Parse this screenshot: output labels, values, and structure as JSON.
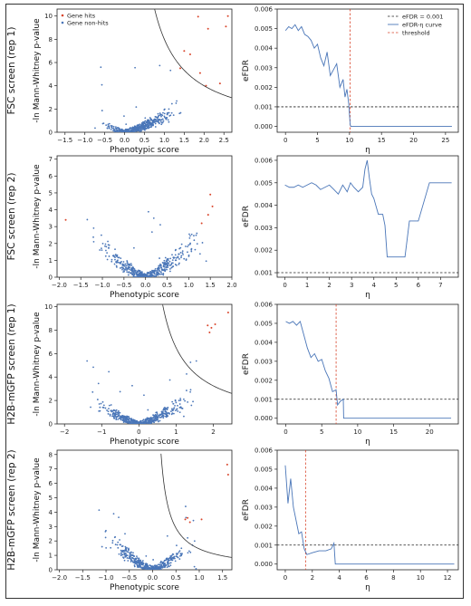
{
  "chart_data": [
    {
      "panel": "A1",
      "type": "scatter",
      "row_label": "FSC screen (rep 1)",
      "xlabel": "Phenotypic score",
      "ylabel": "-ln Mann-Whitney p-value",
      "xlim": [
        -1.7,
        2.7
      ],
      "ylim": [
        0,
        10.6
      ],
      "xticks": [
        -1.5,
        -1.0,
        -0.5,
        0.0,
        0.5,
        1.0,
        1.5,
        2.0,
        2.5
      ],
      "xtick_labels": [
        "−1.5",
        "−1.0",
        "−0.5",
        "0.0",
        "0.5",
        "1.0",
        "1.5",
        "2.0",
        "2.5"
      ],
      "yticks": [
        0,
        2,
        4,
        6,
        8,
        10
      ],
      "ytick_labels": [
        "0",
        "2",
        "4",
        "6",
        "8",
        "10"
      ],
      "legend": [
        "Gene hits",
        "Gene non-hits"
      ],
      "legend_position": "top-left",
      "curve": {
        "c": 8.0,
        "xmin": 0.75
      },
      "spread": {
        "xmin": -0.75,
        "xmax": 1.5,
        "ymax": 2.8
      },
      "hits": [
        [
          2.6,
          10.0
        ],
        [
          2.55,
          9.1
        ],
        [
          1.85,
          9.95
        ],
        [
          2.1,
          8.9
        ],
        [
          1.5,
          7.0
        ],
        [
          2.4,
          4.2
        ],
        [
          2.05,
          4.0
        ],
        [
          1.4,
          5.5
        ],
        [
          1.65,
          6.7
        ],
        [
          1.9,
          5.1
        ]
      ],
      "nonhit_count": 420
    },
    {
      "panel": "B1",
      "type": "line",
      "xlabel": "η",
      "ylabel": "eFDR",
      "xlim": [
        -1.3,
        27
      ],
      "ylim": [
        -0.0003,
        0.006
      ],
      "xticks": [
        0,
        5,
        10,
        15,
        20,
        25
      ],
      "xtick_labels": [
        "0",
        "5",
        "10",
        "15",
        "20",
        "25"
      ],
      "yticks": [
        0.0,
        0.001,
        0.002,
        0.003,
        0.004,
        0.005,
        0.006
      ],
      "ytick_labels": [
        "0.000",
        "0.001",
        "0.002",
        "0.003",
        "0.004",
        "0.005",
        "0.006"
      ],
      "legend": [
        "eFDR = 0.001",
        "eFDR-η curve",
        "threshold"
      ],
      "legend_position": "top-right",
      "hline": 0.001,
      "threshold": 10.1,
      "x": [
        0,
        0.5,
        1,
        1.5,
        2,
        2.5,
        3,
        3.5,
        4,
        4.5,
        5,
        5.5,
        6,
        6.5,
        7,
        7.5,
        8,
        8.5,
        9,
        9.3,
        9.6,
        9.9,
        10.1,
        10.2,
        12,
        15,
        20,
        26
      ],
      "y": [
        0.0049,
        0.0051,
        0.005,
        0.0052,
        0.0049,
        0.0051,
        0.0047,
        0.0046,
        0.0044,
        0.004,
        0.0042,
        0.0035,
        0.0031,
        0.0038,
        0.0026,
        0.0029,
        0.0032,
        0.002,
        0.0024,
        0.0015,
        0.0019,
        0.0011,
        0.0001,
        0.0,
        0.0,
        0.0,
        0.0,
        0.0
      ]
    },
    {
      "panel": "A2",
      "type": "scatter",
      "row_label": "FSC screen (rep 2)",
      "xlabel": "Phenotypic score",
      "ylabel": "-ln Mann-Whitney p-value",
      "xlim": [
        -2.05,
        2.0
      ],
      "ylim": [
        0,
        7.2
      ],
      "xticks": [
        -2.0,
        -1.5,
        -1.0,
        -0.5,
        0.0,
        0.5,
        1.0,
        1.5,
        2.0
      ],
      "xtick_labels": [
        "−2.0",
        "−1.5",
        "−1.0",
        "−0.5",
        "0.0",
        "0.5",
        "1.0",
        "1.5",
        "2.0"
      ],
      "yticks": [
        0,
        1,
        2,
        3,
        4,
        5,
        6,
        7
      ],
      "ytick_labels": [
        "0",
        "1",
        "2",
        "3",
        "4",
        "5",
        "6",
        "7"
      ],
      "spread": {
        "xmin": -1.45,
        "xmax": 1.55,
        "ymax": 3.6
      },
      "hits": [
        [
          1.5,
          4.9
        ],
        [
          1.55,
          4.2
        ],
        [
          -1.85,
          3.4
        ],
        [
          1.45,
          3.7
        ],
        [
          1.3,
          3.2
        ]
      ],
      "nonhit_count": 450
    },
    {
      "panel": "B2",
      "type": "line",
      "xlabel": "η",
      "ylabel": "eFDR",
      "xlim": [
        -0.35,
        7.8
      ],
      "ylim": [
        0.0008,
        0.0062
      ],
      "xticks": [
        0,
        1,
        2,
        3,
        4,
        5,
        6,
        7
      ],
      "xtick_labels": [
        "0",
        "1",
        "2",
        "3",
        "4",
        "5",
        "6",
        "7"
      ],
      "yticks": [
        0.001,
        0.002,
        0.003,
        0.004,
        0.005,
        0.006
      ],
      "ytick_labels": [
        "0.001",
        "0.002",
        "0.003",
        "0.004",
        "0.005",
        "0.006"
      ],
      "hline": 0.001,
      "x": [
        0,
        0.2,
        0.4,
        0.6,
        0.8,
        1.0,
        1.2,
        1.4,
        1.6,
        1.8,
        2.0,
        2.2,
        2.4,
        2.6,
        2.8,
        2.95,
        3.1,
        3.3,
        3.5,
        3.6,
        3.7,
        3.8,
        3.9,
        4.0,
        4.2,
        4.4,
        4.5,
        4.6,
        4.9,
        5.2,
        5.4,
        5.6,
        5.8,
        6.0,
        6.5,
        7.5
      ],
      "y": [
        0.0049,
        0.0048,
        0.0048,
        0.0049,
        0.0048,
        0.0049,
        0.005,
        0.0049,
        0.0047,
        0.0048,
        0.0049,
        0.0047,
        0.0045,
        0.0049,
        0.0046,
        0.005,
        0.0048,
        0.0046,
        0.0048,
        0.0056,
        0.006,
        0.0052,
        0.0045,
        0.0043,
        0.0036,
        0.0036,
        0.0031,
        0.0017,
        0.0017,
        0.0017,
        0.0017,
        0.0033,
        0.0033,
        0.0033,
        0.005,
        0.005
      ]
    },
    {
      "panel": "A3",
      "type": "scatter",
      "row_label": "H2B-mGFP screen (rep 1)",
      "xlabel": "Phenotypic score",
      "ylabel": "-ln Mann-Whitney p-value",
      "xlim": [
        -2.2,
        2.5
      ],
      "ylim": [
        0,
        10.2
      ],
      "xticks": [
        -2,
        -1,
        0,
        1,
        2
      ],
      "xtick_labels": [
        "−2",
        "−1",
        "0",
        "1",
        "2"
      ],
      "yticks": [
        0,
        2,
        4,
        6,
        8,
        10
      ],
      "ytick_labels": [
        "0",
        "2",
        "4",
        "6",
        "8",
        "10"
      ],
      "curve": {
        "c": 6.5,
        "xmin": 0.64
      },
      "spread": {
        "xmin": -1.5,
        "xmax": 1.7,
        "ymax": 3.6
      },
      "hits": [
        [
          1.85,
          8.4
        ],
        [
          1.95,
          8.2
        ],
        [
          1.9,
          7.8
        ],
        [
          2.05,
          8.5
        ],
        [
          2.4,
          9.5
        ]
      ],
      "nonhit_count": 480
    },
    {
      "panel": "B3",
      "type": "line",
      "xlabel": "η",
      "ylabel": "eFDR",
      "xlim": [
        -1.2,
        24
      ],
      "ylim": [
        -0.0003,
        0.006
      ],
      "xticks": [
        0,
        5,
        10,
        15,
        20
      ],
      "xtick_labels": [
        "0",
        "5",
        "10",
        "15",
        "20"
      ],
      "yticks": [
        0.0,
        0.001,
        0.002,
        0.003,
        0.004,
        0.005,
        0.006
      ],
      "ytick_labels": [
        "0.000",
        "0.001",
        "0.002",
        "0.003",
        "0.004",
        "0.005",
        "0.006"
      ],
      "hline": 0.001,
      "threshold": 7.0,
      "x": [
        0,
        0.5,
        1,
        1.5,
        2,
        2.5,
        3,
        3.5,
        4,
        4.5,
        5,
        5.5,
        6,
        6.5,
        7,
        7.2,
        7.6,
        8.0,
        8.05,
        10,
        15,
        23
      ],
      "y": [
        0.0051,
        0.005,
        0.0051,
        0.0049,
        0.0051,
        0.0044,
        0.0037,
        0.0032,
        0.0034,
        0.003,
        0.0031,
        0.0025,
        0.0021,
        0.0014,
        0.0015,
        0.0007,
        0.0009,
        0.001,
        0.0,
        0.0,
        0.0,
        0.0
      ]
    },
    {
      "panel": "A4",
      "type": "scatter",
      "row_label": "H2B-mGFP screen (rep 2)",
      "xlabel": "Phenotypic score",
      "ylabel": "-ln Mann-Whitney p-value",
      "xlim": [
        -2.05,
        1.7
      ],
      "ylim": [
        0,
        8.3
      ],
      "xticks": [
        -2.0,
        -1.5,
        -1.0,
        -0.5,
        0.0,
        0.5,
        1.0,
        1.5
      ],
      "xtick_labels": [
        "−2.0",
        "−1.5",
        "−1.0",
        "−0.5",
        "0.0",
        "0.5",
        "1.0",
        "1.5"
      ],
      "yticks": [
        0,
        1,
        2,
        3,
        4,
        5,
        6,
        7,
        8
      ],
      "ytick_labels": [
        "0",
        "1",
        "2",
        "3",
        "4",
        "5",
        "6",
        "7",
        "8"
      ],
      "curve": {
        "c": 1.45,
        "xmin": 0.18
      },
      "spread": {
        "xmin": -1.2,
        "xmax": 1.0,
        "ymax": 3.5
      },
      "hits": [
        [
          0.7,
          3.5
        ],
        [
          0.75,
          3.6
        ],
        [
          0.8,
          3.3
        ],
        [
          1.6,
          7.3
        ],
        [
          1.62,
          6.6
        ],
        [
          1.05,
          3.5
        ]
      ],
      "nonhit_count": 440
    },
    {
      "panel": "B4",
      "type": "line",
      "xlabel": "η",
      "ylabel": "eFDR",
      "xlim": [
        -0.6,
        12.8
      ],
      "ylim": [
        -0.0003,
        0.006
      ],
      "xticks": [
        0,
        2,
        4,
        6,
        8,
        10,
        12
      ],
      "xtick_labels": [
        "0",
        "2",
        "4",
        "6",
        "8",
        "10",
        "12"
      ],
      "yticks": [
        0.0,
        0.001,
        0.002,
        0.003,
        0.004,
        0.005,
        0.006
      ],
      "ytick_labels": [
        "0.000",
        "0.001",
        "0.002",
        "0.003",
        "0.004",
        "0.005",
        "0.006"
      ],
      "hline": 0.001,
      "threshold": 1.5,
      "x": [
        0,
        0.2,
        0.4,
        0.6,
        0.8,
        1.0,
        1.2,
        1.4,
        1.6,
        2.0,
        2.5,
        3.0,
        3.4,
        3.6,
        3.7,
        5,
        8,
        12.5
      ],
      "y": [
        0.0052,
        0.0032,
        0.0045,
        0.003,
        0.0023,
        0.0016,
        0.0017,
        0.0008,
        0.0005,
        0.0006,
        0.0007,
        0.0007,
        0.0008,
        0.0011,
        0.0,
        0.0,
        0.0,
        0.0
      ]
    }
  ],
  "colors": {
    "nonhit": "#4a76b8",
    "hit": "#d9452b",
    "line": "#4a76b8",
    "threshold": "#d9452b",
    "hline": "#222222",
    "curve": "#333333"
  }
}
